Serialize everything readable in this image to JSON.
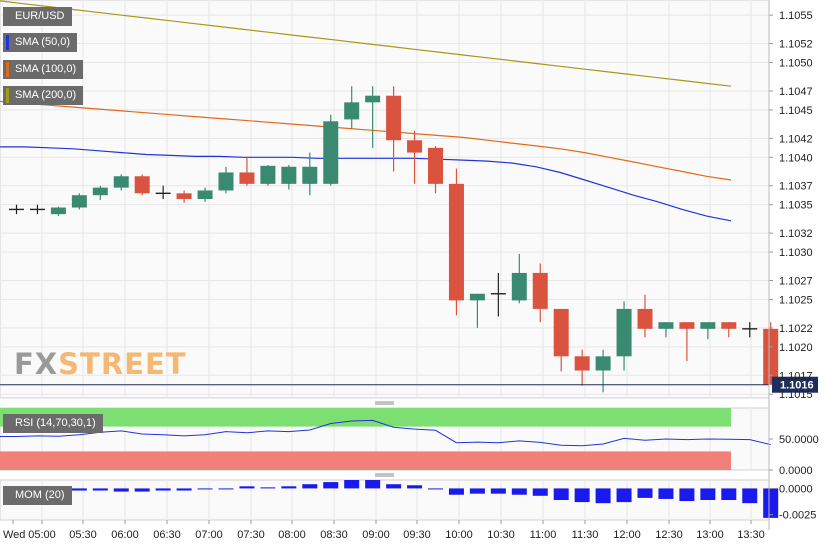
{
  "chart_data": [
    {
      "type": "candlestick",
      "symbol": "EUR/USD",
      "indicators": [
        {
          "name": "SMA (50,0)",
          "color": "#2233dd",
          "values": [
            1.10411,
            1.10411,
            1.1041,
            1.10409,
            1.10407,
            1.10405,
            1.10403,
            1.10402,
            1.10401,
            1.10401,
            1.104,
            1.104,
            1.104,
            1.10399,
            1.10399,
            1.10399,
            1.10399,
            1.10399,
            1.10398,
            1.10397,
            1.10396,
            1.10394,
            1.1039,
            1.10384,
            1.10376,
            1.10368,
            1.1036,
            1.10353,
            1.10345,
            1.10338,
            1.10333
          ]
        },
        {
          "name": "SMA (100,0)",
          "color": "#e06a1a",
          "values": [
            1.10459,
            1.10457,
            1.10455,
            1.10453,
            1.10451,
            1.10449,
            1.10447,
            1.10445,
            1.10443,
            1.10441,
            1.10439,
            1.10437,
            1.10435,
            1.10433,
            1.10431,
            1.10429,
            1.10427,
            1.10425,
            1.10423,
            1.10421,
            1.10418,
            1.10415,
            1.10412,
            1.10409,
            1.10405,
            1.104,
            1.10395,
            1.1039,
            1.10385,
            1.1038,
            1.10376
          ]
        },
        {
          "name": "SMA (200,0)",
          "color": "#a59a14",
          "values": [
            1.10565,
            1.10562,
            1.10559,
            1.10556,
            1.10553,
            1.1055,
            1.10547,
            1.10544,
            1.10541,
            1.10538,
            1.10535,
            1.10532,
            1.10529,
            1.10526,
            1.10523,
            1.1052,
            1.10517,
            1.10514,
            1.10511,
            1.10508,
            1.10505,
            1.10502,
            1.10499,
            1.10496,
            1.10493,
            1.1049,
            1.10487,
            1.10484,
            1.10481,
            1.10478,
            1.10475
          ]
        }
      ],
      "x_labels": [
        "Wed",
        "05:00",
        "05:30",
        "06:00",
        "06:30",
        "07:00",
        "07:30",
        "08:00",
        "08:30",
        "09:00",
        "09:30",
        "10:00",
        "10:30",
        "11:00",
        "11:30",
        "12:00",
        "12:30",
        "13:00",
        "13:30"
      ],
      "candles": [
        {
          "o": 1.10345,
          "h": 1.1035,
          "l": 1.1034,
          "c": 1.10345
        },
        {
          "o": 1.10345,
          "h": 1.1035,
          "l": 1.1034,
          "c": 1.10345
        },
        {
          "o": 1.1034,
          "h": 1.10348,
          "l": 1.10338,
          "c": 1.10347
        },
        {
          "o": 1.10347,
          "h": 1.10362,
          "l": 1.10345,
          "c": 1.1036
        },
        {
          "o": 1.1036,
          "h": 1.1037,
          "l": 1.10355,
          "c": 1.10368
        },
        {
          "o": 1.10368,
          "h": 1.10382,
          "l": 1.10365,
          "c": 1.1038
        },
        {
          "o": 1.1038,
          "h": 1.10382,
          "l": 1.1036,
          "c": 1.10362
        },
        {
          "o": 1.10362,
          "h": 1.1037,
          "l": 1.10356,
          "c": 1.10362
        },
        {
          "o": 1.10362,
          "h": 1.10365,
          "l": 1.10352,
          "c": 1.10356
        },
        {
          "o": 1.10356,
          "h": 1.10368,
          "l": 1.10353,
          "c": 1.10365
        },
        {
          "o": 1.10365,
          "h": 1.1039,
          "l": 1.10362,
          "c": 1.10384
        },
        {
          "o": 1.10384,
          "h": 1.104,
          "l": 1.1037,
          "c": 1.10372
        },
        {
          "o": 1.10372,
          "h": 1.10392,
          "l": 1.1037,
          "c": 1.10391
        },
        {
          "o": 1.10372,
          "h": 1.10392,
          "l": 1.10366,
          "c": 1.1039
        },
        {
          "o": 1.10372,
          "h": 1.10405,
          "l": 1.1036,
          "c": 1.1039
        },
        {
          "o": 1.10372,
          "h": 1.10445,
          "l": 1.1037,
          "c": 1.10438
        },
        {
          "o": 1.1044,
          "h": 1.10475,
          "l": 1.1043,
          "c": 1.10458
        },
        {
          "o": 1.10458,
          "h": 1.10475,
          "l": 1.1041,
          "c": 1.10465
        },
        {
          "o": 1.10465,
          "h": 1.10475,
          "l": 1.10385,
          "c": 1.10418
        },
        {
          "o": 1.10418,
          "h": 1.10428,
          "l": 1.10372,
          "c": 1.10405
        },
        {
          "o": 1.1041,
          "h": 1.10412,
          "l": 1.10362,
          "c": 1.10372
        },
        {
          "o": 1.10372,
          "h": 1.10388,
          "l": 1.10233,
          "c": 1.10249
        },
        {
          "o": 1.10249,
          "h": 1.10256,
          "l": 1.1022,
          "c": 1.10256
        },
        {
          "o": 1.10256,
          "h": 1.10278,
          "l": 1.10232,
          "c": 1.10256
        },
        {
          "o": 1.10249,
          "h": 1.10298,
          "l": 1.10246,
          "c": 1.10278
        },
        {
          "o": 1.10278,
          "h": 1.10288,
          "l": 1.10226,
          "c": 1.1024
        },
        {
          "o": 1.1024,
          "h": 1.1024,
          "l": 1.10174,
          "c": 1.1019
        },
        {
          "o": 1.1019,
          "h": 1.10197,
          "l": 1.10159,
          "c": 1.10175
        },
        {
          "o": 1.10175,
          "h": 1.10197,
          "l": 1.10152,
          "c": 1.1019
        },
        {
          "o": 1.1019,
          "h": 1.10248,
          "l": 1.10175,
          "c": 1.1024
        },
        {
          "o": 1.1024,
          "h": 1.10255,
          "l": 1.1021,
          "c": 1.10219
        },
        {
          "o": 1.10219,
          "h": 1.10226,
          "l": 1.1021,
          "c": 1.10226
        },
        {
          "o": 1.10226,
          "h": 1.10226,
          "l": 1.10185,
          "c": 1.10219
        },
        {
          "o": 1.10219,
          "h": 1.10226,
          "l": 1.10208,
          "c": 1.10226
        },
        {
          "o": 1.10226,
          "h": 1.10226,
          "l": 1.1021,
          "c": 1.10219
        },
        {
          "o": 1.10219,
          "h": 1.10226,
          "l": 1.1021,
          "c": 1.10219
        },
        {
          "o": 1.10219,
          "h": 1.10226,
          "l": 1.1016,
          "c": 1.1016
        }
      ],
      "y_ticks": [
        "1.1055",
        "1.1052",
        "1.1050",
        "1.1047",
        "1.1045",
        "1.1042",
        "1.1040",
        "1.1037",
        "1.1035",
        "1.1032",
        "1.1030",
        "1.1027",
        "1.1025",
        "1.1022",
        "1.1020",
        "1.1017",
        "1.1015"
      ],
      "ylim": [
        1.10146,
        1.10566
      ],
      "last_price": "1.1016",
      "last_price_value": 1.1016
    },
    {
      "type": "line",
      "name": "RSI (14,70,30,1)",
      "ylim": [
        0,
        100
      ],
      "y_ticks": [
        "50.0000",
        "0.0000"
      ],
      "overbought": 70,
      "oversold": 30,
      "values": [
        54.0,
        55.0,
        54.5,
        57.0,
        61.0,
        63.0,
        58.0,
        57.0,
        55.0,
        57.0,
        62.0,
        60.0,
        63.0,
        62.0,
        64.5,
        75.0,
        79.0,
        80.0,
        69.0,
        66.0,
        64.0,
        44.0,
        45.0,
        44.0,
        47.0,
        44.5,
        40.0,
        39.0,
        42.0,
        51.0,
        48.0,
        50.0,
        49.0,
        50.0,
        49.5,
        49.0,
        41.0
      ]
    },
    {
      "type": "bar",
      "name": "MOM (20)",
      "ylim": [
        -0.003,
        0.0008
      ],
      "y_ticks": [
        "0.0000",
        "-0.0025"
      ],
      "values": [
        -0.0003,
        -0.0003,
        -0.0003,
        -0.0002,
        -0.0002,
        -0.0003,
        -0.0003,
        -0.0002,
        -0.0002,
        0.0,
        0.0,
        0.0002,
        0.0001,
        0.0002,
        0.0004,
        0.0006,
        0.0008,
        0.0008,
        0.0004,
        0.0003,
        0.0,
        -0.0006,
        -0.0005,
        -0.0005,
        -0.0006,
        -0.0007,
        -0.0011,
        -0.0013,
        -0.0014,
        -0.0013,
        -0.0009,
        -0.001,
        -0.0012,
        -0.0011,
        -0.0011,
        -0.0014,
        -0.0028
      ]
    }
  ]
}
